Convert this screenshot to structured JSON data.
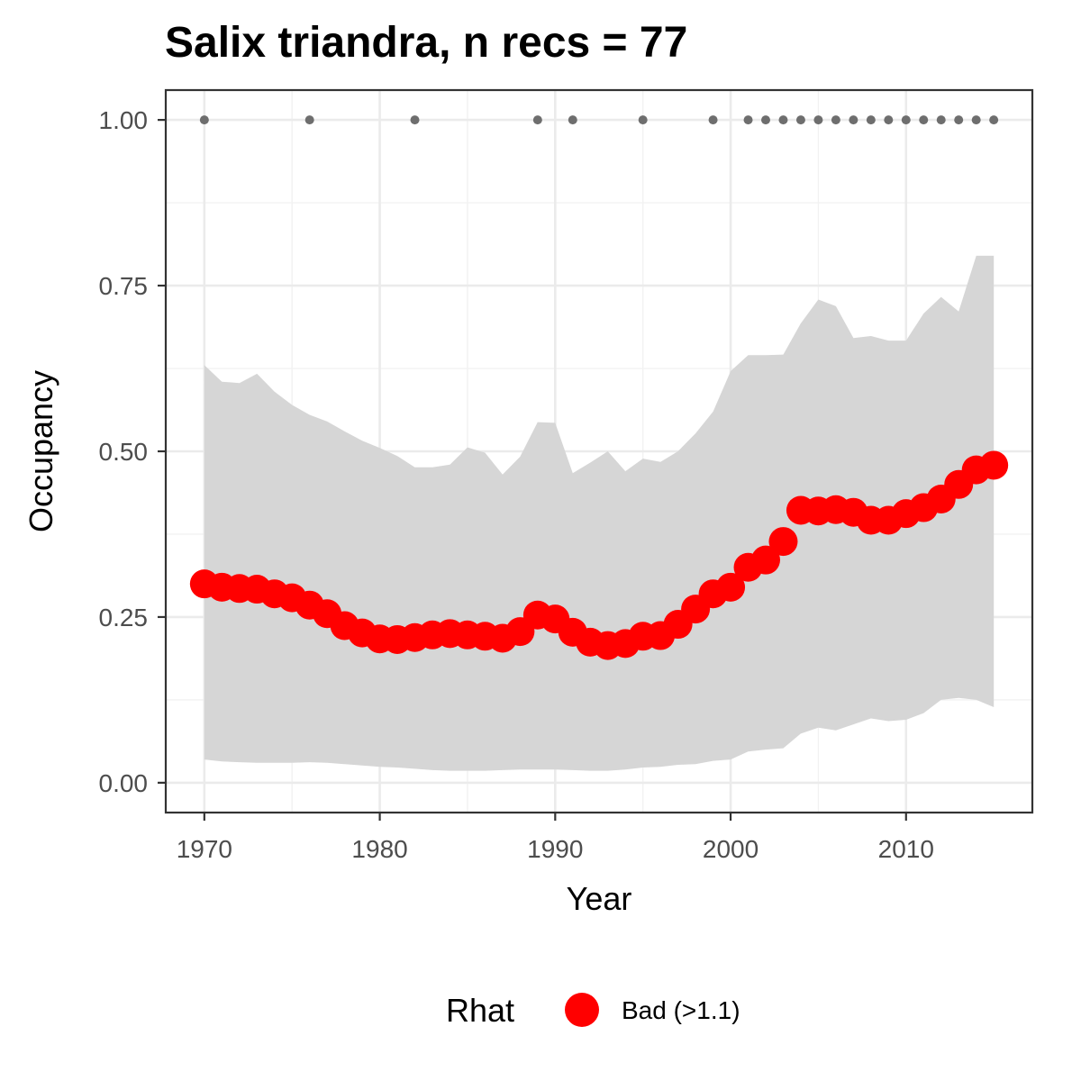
{
  "chart_data": {
    "type": "line",
    "title": "Salix triandra, n recs = 77",
    "xlabel": "Year",
    "ylabel": "Occupancy",
    "xlim": [
      1967.8,
      1917.2
    ],
    "ylim": [
      -0.045,
      1.045
    ],
    "x_ticks": [
      1970,
      1980,
      1990,
      2000,
      2010
    ],
    "x_tick_labels": [
      "1970",
      "1980",
      "1990",
      "2000",
      "2010"
    ],
    "y_ticks": [
      0,
      0.25,
      0.5,
      0.75,
      1.0
    ],
    "y_tick_labels": [
      "0.00",
      "0.25",
      "0.50",
      "0.75",
      "1.00"
    ],
    "grid": true,
    "legend": {
      "title": "Rhat",
      "position": "bottom",
      "entries": [
        {
          "label": "Bad (>1.1)",
          "color": "#ff0000"
        }
      ]
    },
    "colors": {
      "point": "#ff0000",
      "ribbon": "#d6d6d6",
      "records": "#6e6e6e",
      "panel_border": "#333333",
      "grid": "#ebebeb"
    },
    "x": [
      1970,
      1971,
      1972,
      1973,
      1974,
      1975,
      1976,
      1977,
      1978,
      1979,
      1980,
      1981,
      1982,
      1983,
      1984,
      1985,
      1986,
      1987,
      1988,
      1989,
      1990,
      1991,
      1992,
      1993,
      1994,
      1995,
      1996,
      1997,
      1998,
      1999,
      2000,
      2001,
      2002,
      2003,
      2004,
      2005,
      2006,
      2007,
      2008,
      2009,
      2010,
      2011,
      2012,
      2013,
      2014,
      2015
    ],
    "series": [
      {
        "name": "Bad (>1.1)",
        "values": [
          0.3,
          0.295,
          0.293,
          0.292,
          0.285,
          0.279,
          0.268,
          0.255,
          0.237,
          0.226,
          0.217,
          0.216,
          0.219,
          0.223,
          0.225,
          0.223,
          0.221,
          0.218,
          0.228,
          0.253,
          0.247,
          0.227,
          0.212,
          0.207,
          0.21,
          0.221,
          0.222,
          0.239,
          0.262,
          0.285,
          0.295,
          0.325,
          0.336,
          0.364,
          0.411,
          0.41,
          0.412,
          0.408,
          0.396,
          0.396,
          0.406,
          0.415,
          0.428,
          0.45,
          0.472,
          0.479
        ]
      }
    ],
    "ribbon": {
      "lower": [
        0.035,
        0.032,
        0.031,
        0.03,
        0.03,
        0.03,
        0.031,
        0.03,
        0.028,
        0.026,
        0.024,
        0.023,
        0.021,
        0.019,
        0.018,
        0.018,
        0.018,
        0.019,
        0.02,
        0.02,
        0.02,
        0.019,
        0.018,
        0.018,
        0.02,
        0.023,
        0.024,
        0.027,
        0.028,
        0.033,
        0.035,
        0.047,
        0.05,
        0.052,
        0.074,
        0.083,
        0.079,
        0.088,
        0.097,
        0.093,
        0.095,
        0.105,
        0.125,
        0.128,
        0.125,
        0.114
      ],
      "upper": [
        0.63,
        0.605,
        0.603,
        0.617,
        0.59,
        0.57,
        0.555,
        0.545,
        0.53,
        0.516,
        0.505,
        0.493,
        0.476,
        0.476,
        0.48,
        0.506,
        0.498,
        0.465,
        0.492,
        0.544,
        0.543,
        0.467,
        0.483,
        0.5,
        0.47,
        0.489,
        0.484,
        0.5,
        0.527,
        0.56,
        0.621,
        0.645,
        0.645,
        0.646,
        0.693,
        0.729,
        0.719,
        0.671,
        0.674,
        0.667,
        0.667,
        0.708,
        0.733,
        0.711,
        0.795,
        0.795
      ]
    },
    "record_years": [
      1970,
      1976,
      1982,
      1989,
      1991,
      1995,
      1999,
      2001,
      2002,
      2003,
      2004,
      2005,
      2006,
      2007,
      2008,
      2009,
      2010,
      2011,
      2012,
      2013,
      2014,
      2015
    ],
    "record_value": 1.0
  }
}
